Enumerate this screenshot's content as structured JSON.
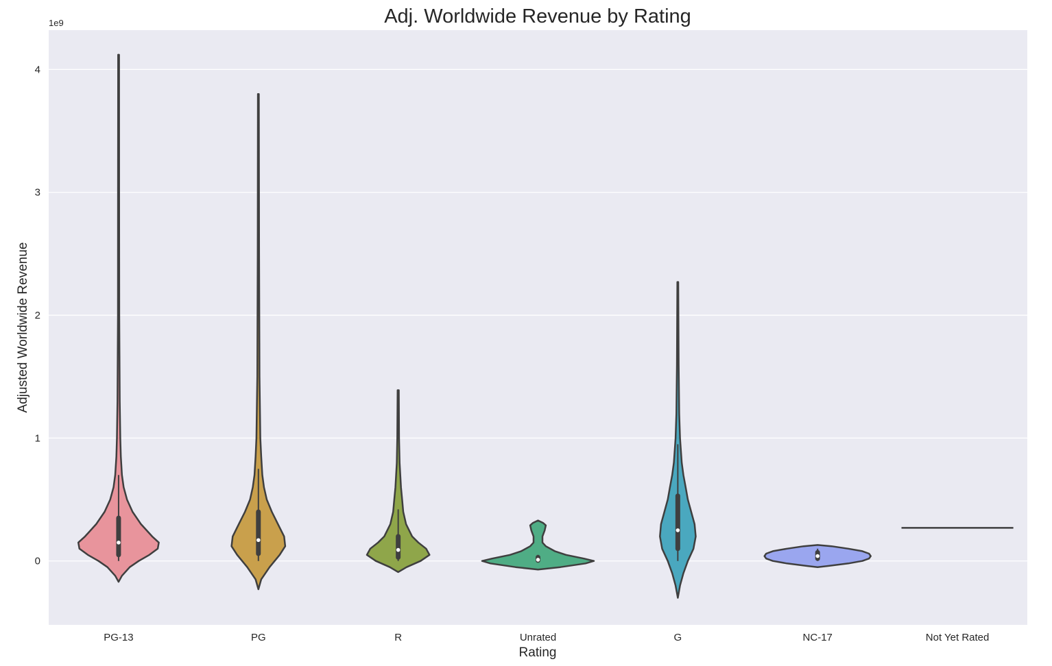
{
  "chart_data": {
    "type": "violin",
    "title": "Adj. Worldwide Revenue by Rating",
    "xlabel": "Rating",
    "ylabel": "Adjusted Worldwide Revenue",
    "y_offset_label": "1e9",
    "ylim": [
      -0.52,
      4.32
    ],
    "y_ticks": [
      0,
      1,
      2,
      3,
      4
    ],
    "grid": true,
    "categories": [
      "PG-13",
      "PG",
      "R",
      "Unrated",
      "G",
      "NC-17",
      "Not Yet Rated"
    ],
    "series": [
      {
        "category": "PG-13",
        "color": "#e8949c",
        "extent": [
          -0.17,
          4.12
        ],
        "q1": 0.05,
        "median": 0.15,
        "q3": 0.35,
        "whisker": [
          0.0,
          0.7
        ],
        "profile": [
          [
            -0.17,
            0.0
          ],
          [
            -0.12,
            0.06
          ],
          [
            -0.05,
            0.2
          ],
          [
            0.0,
            0.36
          ],
          [
            0.05,
            0.55
          ],
          [
            0.1,
            0.7
          ],
          [
            0.15,
            0.72
          ],
          [
            0.2,
            0.6
          ],
          [
            0.3,
            0.4
          ],
          [
            0.4,
            0.25
          ],
          [
            0.5,
            0.15
          ],
          [
            0.6,
            0.09
          ],
          [
            0.7,
            0.06
          ],
          [
            0.85,
            0.04
          ],
          [
            1.0,
            0.03
          ],
          [
            1.3,
            0.02
          ],
          [
            2.0,
            0.012
          ],
          [
            3.0,
            0.01
          ],
          [
            4.12,
            0.008
          ]
        ]
      },
      {
        "category": "PG",
        "color": "#c9a04c",
        "extent": [
          -0.23,
          3.8
        ],
        "q1": 0.06,
        "median": 0.17,
        "q3": 0.4,
        "whisker": [
          0.0,
          0.75
        ],
        "profile": [
          [
            -0.23,
            0.0
          ],
          [
            -0.15,
            0.05
          ],
          [
            -0.05,
            0.2
          ],
          [
            0.05,
            0.38
          ],
          [
            0.12,
            0.48
          ],
          [
            0.2,
            0.46
          ],
          [
            0.3,
            0.35
          ],
          [
            0.4,
            0.24
          ],
          [
            0.5,
            0.15
          ],
          [
            0.6,
            0.1
          ],
          [
            0.7,
            0.07
          ],
          [
            0.85,
            0.05
          ],
          [
            1.0,
            0.035
          ],
          [
            1.5,
            0.02
          ],
          [
            2.5,
            0.012
          ],
          [
            3.8,
            0.008
          ]
        ]
      },
      {
        "category": "R",
        "color": "#8fa64a",
        "extent": [
          -0.09,
          1.39
        ],
        "q1": 0.03,
        "median": 0.09,
        "q3": 0.2,
        "whisker": [
          0.0,
          0.42
        ],
        "profile": [
          [
            -0.09,
            0.0
          ],
          [
            -0.05,
            0.15
          ],
          [
            0.0,
            0.4
          ],
          [
            0.05,
            0.56
          ],
          [
            0.1,
            0.5
          ],
          [
            0.15,
            0.36
          ],
          [
            0.2,
            0.25
          ],
          [
            0.3,
            0.14
          ],
          [
            0.4,
            0.09
          ],
          [
            0.5,
            0.07
          ],
          [
            0.6,
            0.05
          ],
          [
            0.8,
            0.025
          ],
          [
            1.0,
            0.016
          ],
          [
            1.39,
            0.01
          ]
        ]
      },
      {
        "category": "Unrated",
        "color": "#4fad85",
        "extent": [
          -0.07,
          0.33
        ],
        "q1": 0.005,
        "median": 0.01,
        "q3": 0.03,
        "whisker": [
          0.0,
          0.05
        ],
        "profile": [
          [
            -0.07,
            0.0
          ],
          [
            -0.05,
            0.4
          ],
          [
            -0.02,
            0.85
          ],
          [
            0.0,
            1.0
          ],
          [
            0.02,
            0.82
          ],
          [
            0.05,
            0.5
          ],
          [
            0.08,
            0.3
          ],
          [
            0.12,
            0.14
          ],
          [
            0.15,
            0.08
          ],
          [
            0.2,
            0.08
          ],
          [
            0.25,
            0.12
          ],
          [
            0.29,
            0.14
          ],
          [
            0.31,
            0.09
          ],
          [
            0.33,
            0.0
          ]
        ]
      },
      {
        "category": "G",
        "color": "#4aa8bf",
        "extent": [
          -0.3,
          2.27
        ],
        "q1": 0.1,
        "median": 0.25,
        "q3": 0.53,
        "whisker": [
          0.0,
          0.95
        ],
        "profile": [
          [
            -0.3,
            0.0
          ],
          [
            -0.2,
            0.04
          ],
          [
            -0.1,
            0.1
          ],
          [
            0.0,
            0.18
          ],
          [
            0.1,
            0.28
          ],
          [
            0.2,
            0.32
          ],
          [
            0.3,
            0.3
          ],
          [
            0.4,
            0.24
          ],
          [
            0.5,
            0.18
          ],
          [
            0.6,
            0.14
          ],
          [
            0.7,
            0.1
          ],
          [
            0.8,
            0.07
          ],
          [
            1.0,
            0.04
          ],
          [
            1.2,
            0.025
          ],
          [
            1.6,
            0.015
          ],
          [
            2.27,
            0.008
          ]
        ]
      },
      {
        "category": "NC-17",
        "color": "#9aa6ef",
        "extent": [
          -0.05,
          0.13
        ],
        "q1": 0.02,
        "median": 0.04,
        "q3": 0.07,
        "whisker": [
          0.0,
          0.1
        ],
        "profile": [
          [
            -0.05,
            0.0
          ],
          [
            -0.04,
            0.2
          ],
          [
            -0.02,
            0.55
          ],
          [
            0.0,
            0.8
          ],
          [
            0.02,
            0.92
          ],
          [
            0.04,
            0.95
          ],
          [
            0.06,
            0.92
          ],
          [
            0.08,
            0.8
          ],
          [
            0.1,
            0.55
          ],
          [
            0.12,
            0.25
          ],
          [
            0.13,
            0.0
          ]
        ]
      },
      {
        "category": "Not Yet Rated",
        "color": "#e6a4c9",
        "extent": [
          0.27,
          0.27
        ],
        "single_value": 0.27
      }
    ]
  }
}
